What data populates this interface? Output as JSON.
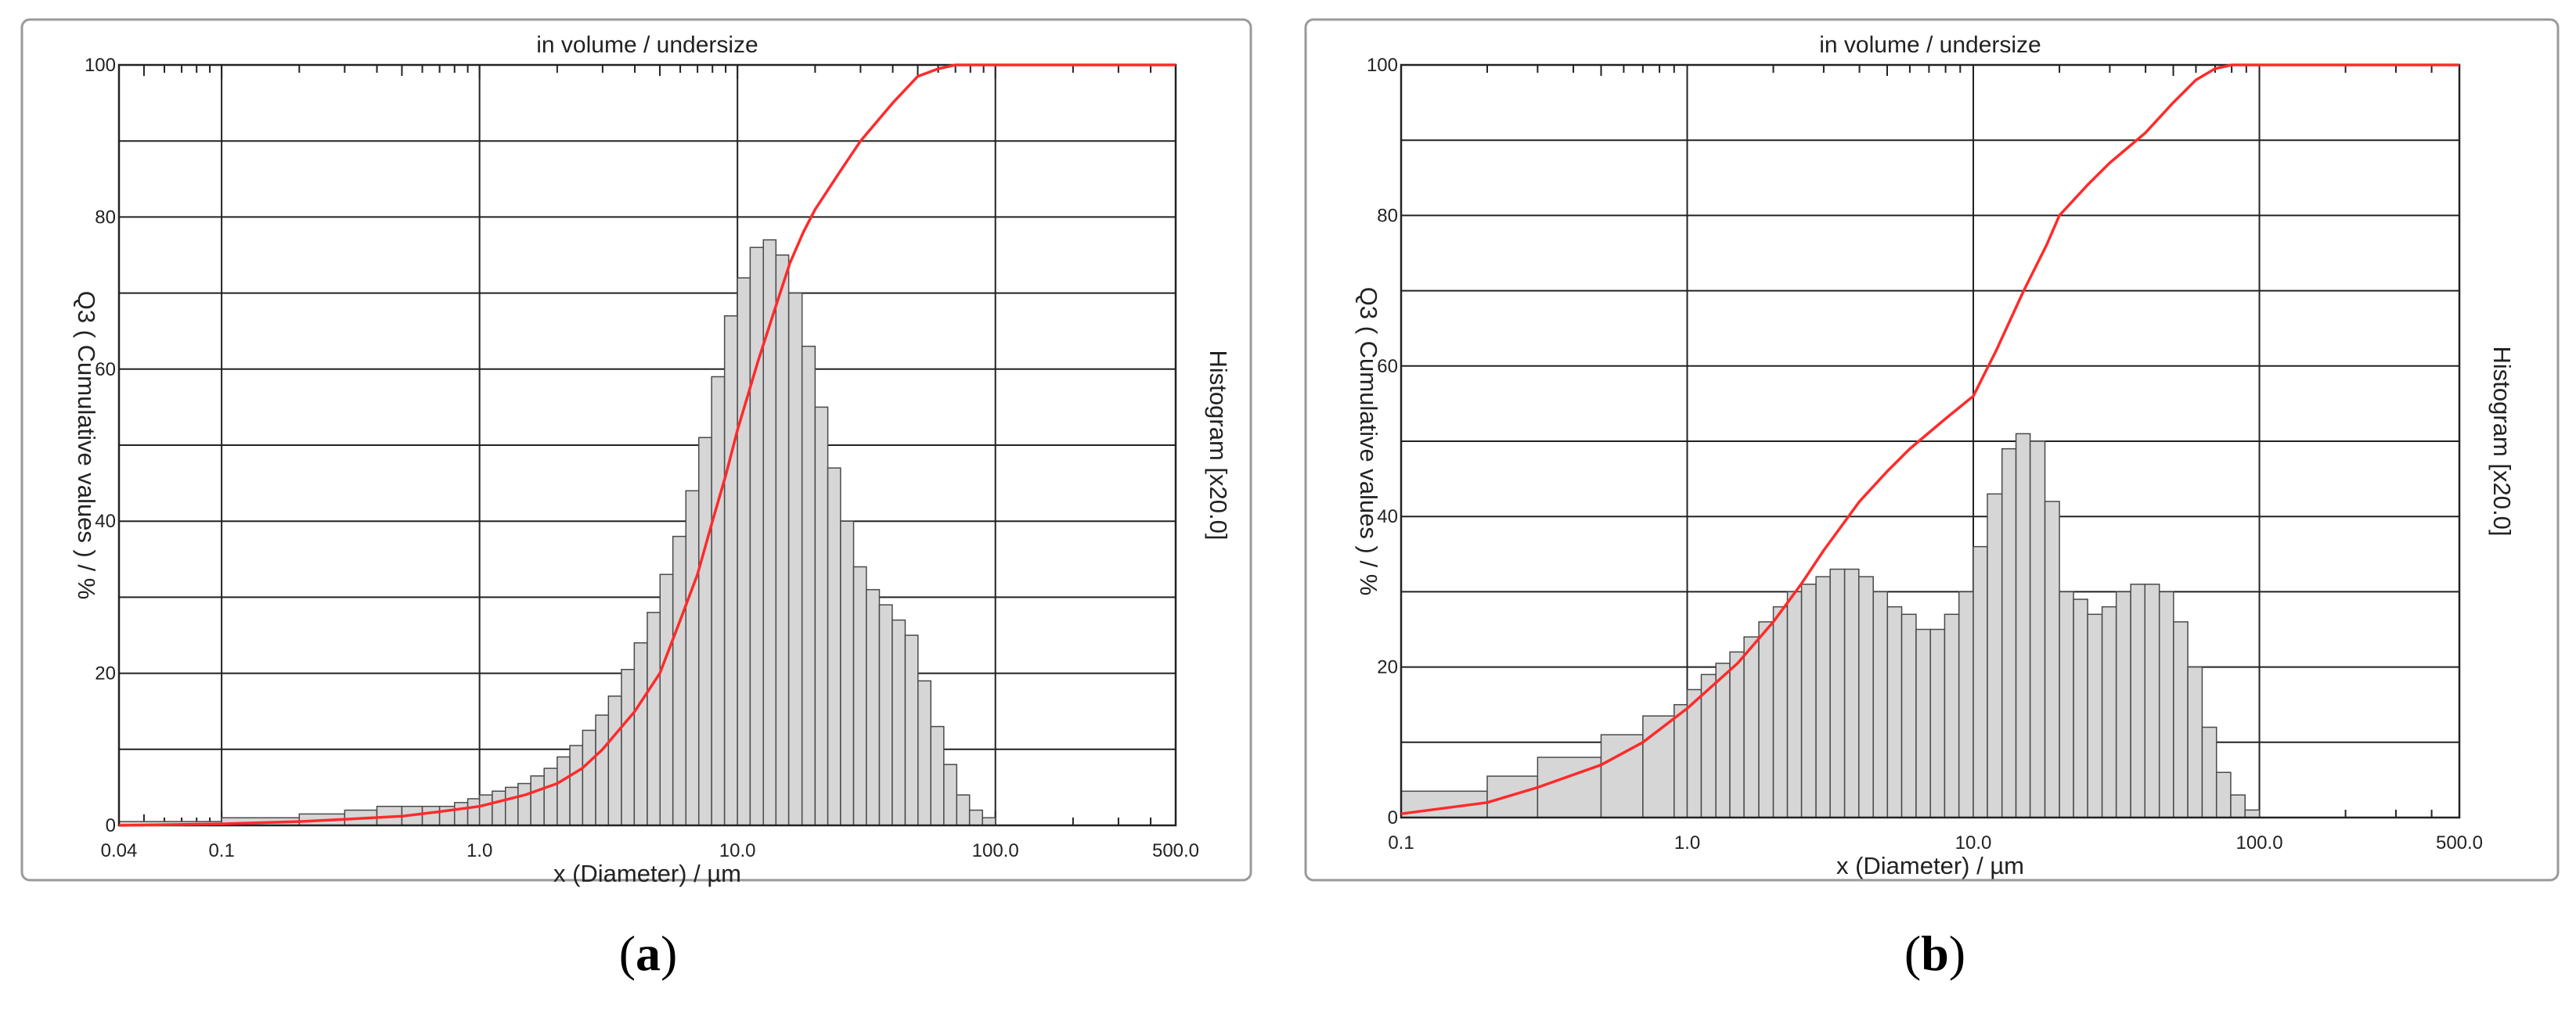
{
  "chart_data": [
    {
      "type": "bar",
      "panel": "a",
      "title": "in volume / undersize",
      "xlabel": "x (Diameter) / µm",
      "ylabel": "Q3 ( Cumulative values ) / %",
      "y2label": "Histogram [x20.0]",
      "xscale": "log",
      "xlim": [
        0.04,
        500
      ],
      "ylim": [
        0,
        100
      ],
      "xticks": [
        "0.04",
        "0.1",
        "1.0",
        "10.0",
        "100.0",
        "500.0"
      ],
      "yticks": [
        "0",
        "20",
        "40",
        "60",
        "80",
        "100"
      ],
      "grid": true,
      "histogram": {
        "bin_edges": [
          0.04,
          0.1,
          0.2,
          0.3,
          0.4,
          0.5,
          0.6,
          0.7,
          0.8,
          0.9,
          1.0,
          1.12,
          1.26,
          1.41,
          1.58,
          1.78,
          2.0,
          2.24,
          2.51,
          2.82,
          3.16,
          3.55,
          3.98,
          4.47,
          5.01,
          5.62,
          6.31,
          7.08,
          7.94,
          8.91,
          10.0,
          11.2,
          12.6,
          14.1,
          15.8,
          17.8,
          20.0,
          22.4,
          25.1,
          28.2,
          31.6,
          35.5,
          39.8,
          44.7,
          50.1,
          56.2,
          63.1,
          70.8,
          79.4,
          89.1,
          100.0
        ],
        "values": [
          0.5,
          1.0,
          1.5,
          2.0,
          2.5,
          2.5,
          2.5,
          2.5,
          3.0,
          3.5,
          4.0,
          4.5,
          5.0,
          5.5,
          6.5,
          7.5,
          9,
          10.5,
          12.5,
          14.5,
          17,
          20.5,
          24,
          28,
          33,
          38,
          44,
          51,
          59,
          67,
          72,
          76,
          77,
          75,
          70,
          63,
          55,
          47,
          40,
          34,
          31,
          29,
          27,
          25,
          19,
          13,
          8,
          4,
          2,
          1
        ]
      },
      "cumulative": {
        "name": "Q3",
        "x": [
          0.04,
          0.1,
          0.2,
          0.3,
          0.5,
          0.7,
          1.0,
          1.5,
          2.0,
          2.5,
          3.0,
          4.0,
          5.0,
          6.0,
          7.0,
          8.0,
          9.0,
          10.0,
          12.0,
          14.0,
          16.0,
          18.0,
          20.0,
          25.0,
          30.0,
          40.0,
          50.0,
          60.0,
          70.0,
          80.0,
          100.0,
          500.0
        ],
        "y": [
          0,
          0.2,
          0.5,
          0.8,
          1.2,
          1.8,
          2.5,
          4,
          5.5,
          7.5,
          10,
          15,
          20,
          27,
          33,
          40,
          46,
          52,
          61,
          68,
          74,
          78,
          81,
          86,
          90,
          95,
          98.5,
          99.5,
          100,
          100,
          100,
          100
        ]
      }
    },
    {
      "type": "bar",
      "panel": "b",
      "title": "in volume / undersize",
      "xlabel": "x (Diameter) / µm",
      "ylabel": "Q3 ( Cumulative values ) / %",
      "y2label": "Histogram [x20.0]",
      "xscale": "log",
      "xlim": [
        0.1,
        500
      ],
      "ylim": [
        0,
        100
      ],
      "xticks": [
        "0.1",
        "1.0",
        "10.0",
        "100.0",
        "500.0"
      ],
      "yticks": [
        "0",
        "20",
        "40",
        "60",
        "80",
        "100"
      ],
      "grid": true,
      "histogram": {
        "bin_edges": [
          0.1,
          0.2,
          0.3,
          0.5,
          0.7,
          0.9,
          1.0,
          1.12,
          1.26,
          1.41,
          1.58,
          1.78,
          2.0,
          2.24,
          2.51,
          2.82,
          3.16,
          3.55,
          3.98,
          4.47,
          5.01,
          5.62,
          6.31,
          7.08,
          7.94,
          8.91,
          10.0,
          11.2,
          12.6,
          14.1,
          15.8,
          17.8,
          20.0,
          22.4,
          25.1,
          28.2,
          31.6,
          35.5,
          39.8,
          44.7,
          50.1,
          56.2,
          63.1,
          70.8,
          79.4,
          89.1,
          100.0
        ],
        "values": [
          3.5,
          5.5,
          8,
          11,
          13.5,
          15,
          17,
          19,
          20.5,
          22,
          24,
          26,
          28,
          30,
          31,
          32,
          33,
          33,
          32,
          30,
          28,
          27,
          25,
          25,
          27,
          30,
          36,
          43,
          49,
          51,
          50,
          42,
          30,
          29,
          27,
          28,
          30,
          31,
          31,
          30,
          26,
          20,
          12,
          6,
          3,
          1
        ]
      },
      "cumulative": {
        "name": "Q3",
        "x": [
          0.1,
          0.2,
          0.3,
          0.5,
          0.7,
          1.0,
          1.5,
          2.0,
          2.5,
          3.0,
          4.0,
          5.0,
          6.0,
          8.0,
          10.0,
          12.0,
          15.0,
          18.0,
          20.0,
          25.0,
          30.0,
          40.0,
          50.0,
          60.0,
          70.0,
          80.0,
          100.0,
          500.0
        ],
        "y": [
          0.5,
          2,
          4,
          7,
          10,
          14.5,
          20.5,
          26,
          31,
          35.5,
          42,
          46,
          49,
          53,
          56,
          62,
          70,
          76,
          80,
          84,
          87,
          91,
          95,
          98,
          99.5,
          100,
          100,
          100
        ]
      }
    }
  ],
  "captions": [
    {
      "open": "(",
      "letter": "a",
      "close": ")"
    },
    {
      "open": "(",
      "letter": "b",
      "close": ")"
    }
  ],
  "colors": {
    "bar_fill": "#d6d6d6",
    "bar_stroke": "#4a4a4a",
    "curve": "#ff2a2a",
    "grid": "#222222",
    "frame": "#9a9a9a",
    "text": "#222222"
  }
}
